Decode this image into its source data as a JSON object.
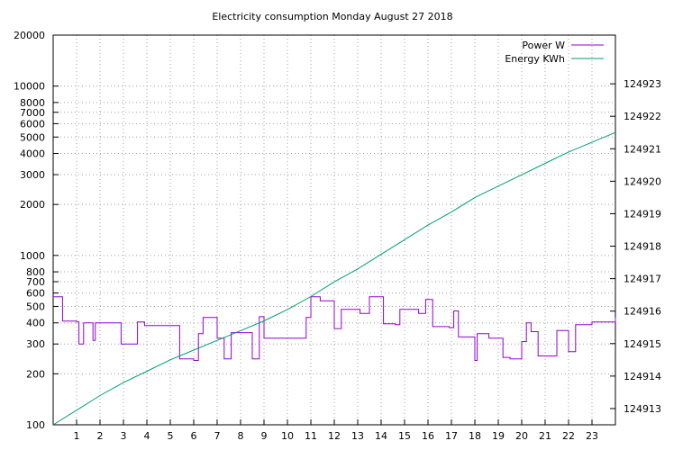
{
  "chart_data": {
    "type": "line",
    "title": "Electricity consumption Monday August 27 2018",
    "xlabel": "",
    "ylabel": "",
    "x_ticks": [
      "1",
      "2",
      "3",
      "4",
      "5",
      "6",
      "7",
      "8",
      "9",
      "10",
      "11",
      "12",
      "13",
      "14",
      "15",
      "16",
      "17",
      "18",
      "19",
      "20",
      "21",
      "22",
      "23"
    ],
    "xlim": [
      0,
      24
    ],
    "y_left": {
      "scale": "log",
      "lim": [
        100,
        20000
      ],
      "ticks": [
        {
          "v": 100,
          "label": "100"
        },
        {
          "v": 200,
          "label": "200"
        },
        {
          "v": 300,
          "label": "300"
        },
        {
          "v": 400,
          "label": "400"
        },
        {
          "v": 500,
          "label": "500"
        },
        {
          "v": 600,
          "label": "600"
        },
        {
          "v": 700,
          "label": "700"
        },
        {
          "v": 800,
          "label": "800"
        },
        {
          "v": 1000,
          "label": "1000"
        },
        {
          "v": 2000,
          "label": "2000"
        },
        {
          "v": 3000,
          "label": "3000"
        },
        {
          "v": 4000,
          "label": "4000"
        },
        {
          "v": 5000,
          "label": "5000"
        },
        {
          "v": 6000,
          "label": "6000"
        },
        {
          "v": 7000,
          "label": "7000"
        },
        {
          "v": 8000,
          "label": "8000"
        },
        {
          "v": 10000,
          "label": "10000"
        },
        {
          "v": 20000,
          "label": "20000"
        }
      ]
    },
    "y_right": {
      "scale": "log",
      "lim": [
        124912.5,
        124924.5
      ],
      "ticks": [
        {
          "v": 124913,
          "label": "124913"
        },
        {
          "v": 124914,
          "label": "124914"
        },
        {
          "v": 124915,
          "label": "124915"
        },
        {
          "v": 124916,
          "label": "124916"
        },
        {
          "v": 124917,
          "label": "124917"
        },
        {
          "v": 124918,
          "label": "124918"
        },
        {
          "v": 124919,
          "label": "124919"
        },
        {
          "v": 124920,
          "label": "124920"
        },
        {
          "v": 124921,
          "label": "124921"
        },
        {
          "v": 124922,
          "label": "124922"
        },
        {
          "v": 124923,
          "label": "124923"
        }
      ]
    },
    "grid": true,
    "legend": "top-right",
    "series": [
      {
        "name": "Power W",
        "axis": "left",
        "color": "#9400d3",
        "step": true,
        "x": [
          0,
          0.4,
          1.0,
          1.1,
          1.3,
          1.7,
          1.8,
          2.0,
          2.9,
          3.6,
          3.9,
          4.2,
          5.4,
          6.0,
          6.2,
          6.4,
          7.0,
          7.3,
          7.6,
          8.5,
          8.8,
          9.0,
          10.8,
          11.0,
          11.4,
          12.0,
          12.3,
          13.1,
          13.5,
          14.1,
          14.6,
          14.8,
          15.6,
          15.9,
          16.2,
          16.9,
          17.1,
          17.3,
          18.0,
          18.1,
          18.5,
          18.6,
          19.2,
          19.5,
          20.0,
          20.2,
          20.4,
          20.7,
          21.5,
          22.0,
          22.3,
          23.0,
          24.0
        ],
        "y": [
          570,
          410,
          405,
          300,
          400,
          315,
          400,
          400,
          300,
          405,
          385,
          385,
          245,
          240,
          345,
          430,
          325,
          245,
          350,
          245,
          435,
          325,
          430,
          570,
          540,
          370,
          480,
          455,
          570,
          395,
          390,
          480,
          455,
          550,
          380,
          375,
          470,
          330,
          240,
          345,
          345,
          325,
          250,
          245,
          310,
          400,
          355,
          255,
          360,
          270,
          390,
          405,
          430
        ]
      },
      {
        "name": "Energy KWh",
        "axis": "right",
        "color": "#009e73",
        "step": false,
        "x": [
          0,
          1,
          2,
          3,
          4,
          5,
          6,
          7,
          8,
          9,
          10,
          11,
          12,
          13,
          14,
          15,
          16,
          17,
          18,
          19,
          20,
          21,
          22,
          23,
          24
        ],
        "y": [
          124912.5,
          124912.95,
          124913.4,
          124913.8,
          124914.15,
          124914.5,
          124914.8,
          124915.1,
          124915.4,
          124915.7,
          124916.05,
          124916.45,
          124916.9,
          124917.3,
          124917.75,
          124918.2,
          124918.65,
          124919.05,
          124919.5,
          124919.85,
          124920.2,
          124920.55,
          124920.9,
          124921.2,
          124921.5
        ]
      }
    ]
  }
}
